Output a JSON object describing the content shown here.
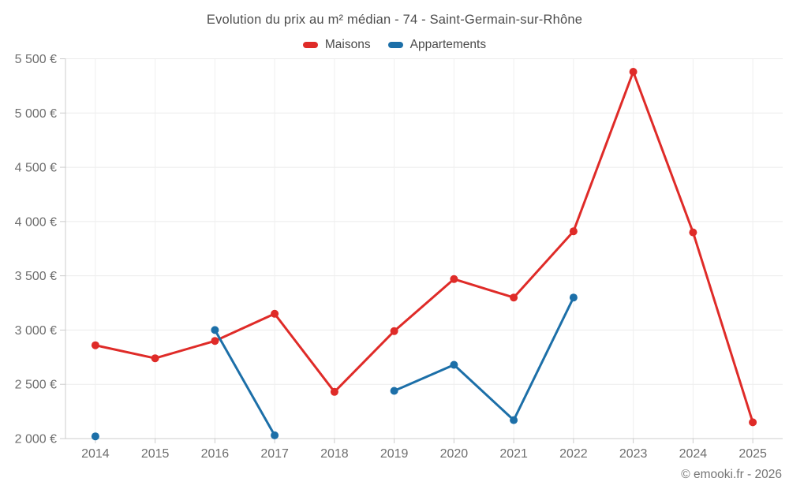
{
  "header": {
    "title": "Evolution du prix au m² médian - 74 - Saint-Germain-sur-Rhône"
  },
  "footer": {
    "credit": "© emooki.fr - 2026"
  },
  "colors": {
    "maisons": "#df2b28",
    "appartements": "#1c6fa8",
    "grid": "#ebebeb",
    "axis": "#cccccc",
    "tick_text": "#6e6e6e"
  },
  "chart_data": {
    "type": "line",
    "title": "Evolution du prix au m² médian - 74 - Saint-Germain-sur-Rhône",
    "xlabel": "",
    "ylabel": "",
    "categories": [
      "2014",
      "2015",
      "2016",
      "2017",
      "2018",
      "2019",
      "2020",
      "2021",
      "2022",
      "2023",
      "2024",
      "2025"
    ],
    "series": [
      {
        "name": "Maisons",
        "color": "#df2b28",
        "values": [
          2860,
          2740,
          2900,
          3150,
          2430,
          2990,
          3470,
          3300,
          3910,
          5380,
          3900,
          2150
        ]
      },
      {
        "name": "Appartements",
        "color": "#1c6fa8",
        "values": [
          2020,
          null,
          3000,
          2030,
          null,
          2440,
          2680,
          2170,
          3300,
          null,
          null,
          null
        ]
      }
    ],
    "ylim": [
      2000,
      5500
    ],
    "y_ticks": [
      {
        "value": 2000,
        "label": "2 000 €"
      },
      {
        "value": 2500,
        "label": "2 500 €"
      },
      {
        "value": 3000,
        "label": "3 000 €"
      },
      {
        "value": 3500,
        "label": "3 500 €"
      },
      {
        "value": 4000,
        "label": "4 000 €"
      },
      {
        "value": 4500,
        "label": "4 500 €"
      },
      {
        "value": 5000,
        "label": "5 000 €"
      },
      {
        "value": 5500,
        "label": "5 500 €"
      }
    ],
    "grid": true,
    "legend_position": "top",
    "marker": "circle"
  }
}
